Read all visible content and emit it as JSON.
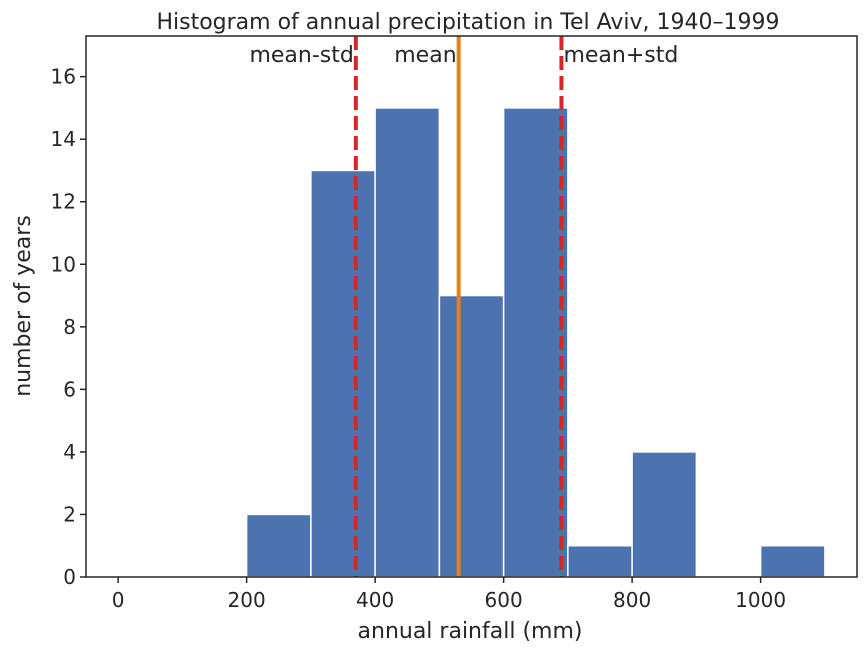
{
  "chart_data": {
    "type": "bar",
    "title": "Histogram of annual precipitation in Tel Aviv, 1940–1999",
    "xlabel": "annual rainfall (mm)",
    "ylabel": "number of years",
    "xlim": [
      -50,
      1150
    ],
    "ylim": [
      0,
      17.3
    ],
    "xticks": [
      0,
      200,
      400,
      600,
      800,
      1000
    ],
    "yticks": [
      0,
      2,
      4,
      6,
      8,
      10,
      12,
      14,
      16
    ],
    "grid": false,
    "bins": [
      {
        "x0": 0,
        "x1": 100,
        "count": 0
      },
      {
        "x0": 100,
        "x1": 200,
        "count": 0
      },
      {
        "x0": 200,
        "x1": 300,
        "count": 2
      },
      {
        "x0": 300,
        "x1": 400,
        "count": 13
      },
      {
        "x0": 400,
        "x1": 500,
        "count": 15
      },
      {
        "x0": 500,
        "x1": 600,
        "count": 9
      },
      {
        "x0": 600,
        "x1": 700,
        "count": 15
      },
      {
        "x0": 700,
        "x1": 800,
        "count": 1
      },
      {
        "x0": 800,
        "x1": 900,
        "count": 4
      },
      {
        "x0": 900,
        "x1": 1000,
        "count": 0
      },
      {
        "x0": 1000,
        "x1": 1100,
        "count": 1
      }
    ],
    "bar_color": "#4c72b0",
    "reference_lines": [
      {
        "label": "mean-std",
        "x": 370,
        "style": "dashed",
        "color": "#d62728",
        "label_anchor": "end"
      },
      {
        "label": "mean",
        "x": 530,
        "style": "solid",
        "color": "#e8801a",
        "label_anchor": "end"
      },
      {
        "label": "mean+std",
        "x": 690,
        "style": "dashed",
        "color": "#d62728",
        "label_anchor": "start"
      }
    ]
  }
}
